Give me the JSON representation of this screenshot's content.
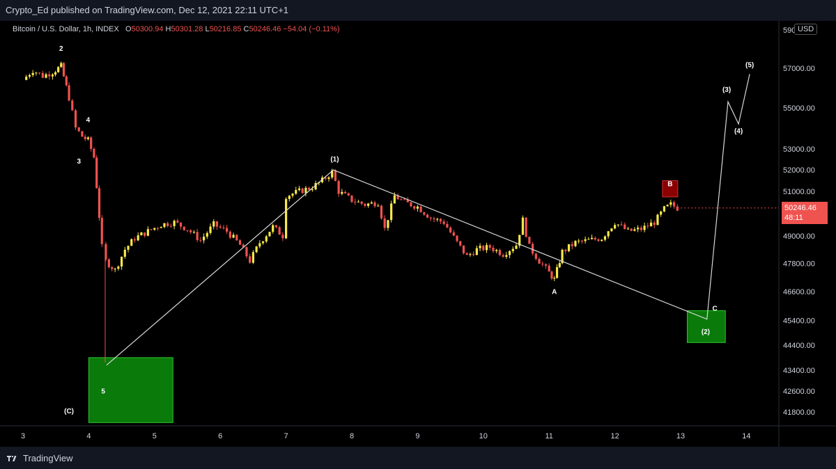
{
  "header": {
    "published": "Crypto_Ed published on TradingView.com, Dec 12, 2021 22:11 UTC+1"
  },
  "legend": {
    "symbol": "Bitcoin / U.S. Dollar, 1h, INDEX",
    "o_label": "O",
    "o": "50300.94",
    "h_label": "H",
    "h": "50301.28",
    "l_label": "L",
    "l": "50216.85",
    "c_label": "C",
    "c": "50246.46",
    "change": "−54.04 (−0.11%)"
  },
  "currency_button": "USD",
  "last_price": {
    "value": "50246.46",
    "countdown": "48:11"
  },
  "footer": {
    "brand": "TradingView"
  },
  "colors": {
    "up": "#f7e94a",
    "down": "#ef5350",
    "zone_fill": "#0a7a0a",
    "zone_border": "#2fc42f",
    "b_box": "#8b0000",
    "line": "#d9d9d9"
  },
  "chart_data": {
    "type": "candlestick",
    "x_axis": {
      "ticks": [
        "3",
        "4",
        "5",
        "6",
        "7",
        "8",
        "9",
        "10",
        "11",
        "12",
        "13",
        "14"
      ]
    },
    "y_axis": {
      "ticks": [
        "59000.00",
        "57000.00",
        "55000.00",
        "53000.00",
        "52000.00",
        "51000.00",
        "50246.46",
        "49000.00",
        "47800.00",
        "46600.00",
        "45400.00",
        "44400.00",
        "43400.00",
        "42600.00",
        "41800.00"
      ],
      "scale": "log"
    },
    "wave_labels": [
      {
        "text": "2",
        "day": 3.58,
        "price": 57900
      },
      {
        "text": "4",
        "day": 3.99,
        "price": 54300
      },
      {
        "text": "3",
        "day": 3.85,
        "price": 52300
      },
      {
        "text": "5",
        "day": 4.22,
        "price": 42500
      },
      {
        "text": "(C)",
        "day": 3.7,
        "price": 41750
      },
      {
        "text": "(1)",
        "day": 7.74,
        "price": 52400
      },
      {
        "text": "A",
        "day": 11.08,
        "price": 46500
      },
      {
        "text": "B",
        "day": 12.84,
        "price": 51250
      },
      {
        "text": "C",
        "day": 13.52,
        "price": 45800
      },
      {
        "text": "(2)",
        "day": 13.38,
        "price": 44850
      },
      {
        "text": "(3)",
        "day": 13.7,
        "price": 55800
      },
      {
        "text": "(4)",
        "day": 13.88,
        "price": 53750
      },
      {
        "text": "(5)",
        "day": 14.05,
        "price": 57050
      }
    ],
    "projection_path": [
      {
        "day": 4.27,
        "price": 43600
      },
      {
        "day": 7.72,
        "price": 52000
      },
      {
        "day": 13.4,
        "price": 45450
      },
      {
        "day": 13.72,
        "price": 55300
      },
      {
        "day": 13.88,
        "price": 54200
      },
      {
        "day": 14.05,
        "price": 56700
      }
    ],
    "zones": [
      {
        "name": "wave-5-target-zone",
        "day_start": 4.0,
        "day_end": 5.28,
        "price_top": 43900,
        "price_bottom": 41400
      },
      {
        "name": "wave-2-target-zone",
        "day_start": 13.1,
        "day_end": 13.68,
        "price_top": 45800,
        "price_bottom": 44500
      }
    ],
    "b_marker": {
      "day": 12.84,
      "price_top": 51500,
      "price_bottom": 50750
    },
    "series": [
      {
        "name": "close",
        "points": [
          [
            3.0,
            56400
          ],
          [
            3.15,
            56900
          ],
          [
            3.3,
            56600
          ],
          [
            3.45,
            56800
          ],
          [
            3.58,
            57100
          ],
          [
            3.7,
            55500
          ],
          [
            3.8,
            54000
          ],
          [
            3.9,
            53600
          ],
          [
            3.99,
            53400
          ],
          [
            4.08,
            52600
          ],
          [
            4.2,
            48500
          ],
          [
            4.26,
            47900
          ],
          [
            4.4,
            47500
          ],
          [
            4.55,
            48400
          ],
          [
            4.7,
            48900
          ],
          [
            4.9,
            49200
          ],
          [
            5.1,
            49500
          ],
          [
            5.3,
            49600
          ],
          [
            5.5,
            49300
          ],
          [
            5.7,
            48800
          ],
          [
            5.9,
            49500
          ],
          [
            6.1,
            49200
          ],
          [
            6.3,
            48600
          ],
          [
            6.45,
            47900
          ],
          [
            6.6,
            48700
          ],
          [
            6.8,
            49400
          ],
          [
            6.95,
            49000
          ],
          [
            7.0,
            50800
          ],
          [
            7.2,
            51000
          ],
          [
            7.4,
            51200
          ],
          [
            7.55,
            51500
          ],
          [
            7.7,
            51900
          ],
          [
            7.8,
            51000
          ],
          [
            8.0,
            50600
          ],
          [
            8.2,
            50400
          ],
          [
            8.4,
            50500
          ],
          [
            8.5,
            49300
          ],
          [
            8.65,
            50800
          ],
          [
            8.8,
            50500
          ],
          [
            9.0,
            50300
          ],
          [
            9.2,
            49800
          ],
          [
            9.4,
            49600
          ],
          [
            9.6,
            48700
          ],
          [
            9.75,
            48100
          ],
          [
            9.9,
            48400
          ],
          [
            10.1,
            48500
          ],
          [
            10.3,
            48200
          ],
          [
            10.5,
            48600
          ],
          [
            10.6,
            49700
          ],
          [
            10.7,
            48500
          ],
          [
            10.85,
            47900
          ],
          [
            11.0,
            47400
          ],
          [
            11.08,
            47100
          ],
          [
            11.2,
            48300
          ],
          [
            11.4,
            48700
          ],
          [
            11.6,
            48800
          ],
          [
            11.8,
            48900
          ],
          [
            12.0,
            49600
          ],
          [
            12.2,
            49200
          ],
          [
            12.4,
            49300
          ],
          [
            12.6,
            49600
          ],
          [
            12.75,
            50200
          ],
          [
            12.85,
            50400
          ],
          [
            12.95,
            50246
          ]
        ]
      }
    ]
  }
}
